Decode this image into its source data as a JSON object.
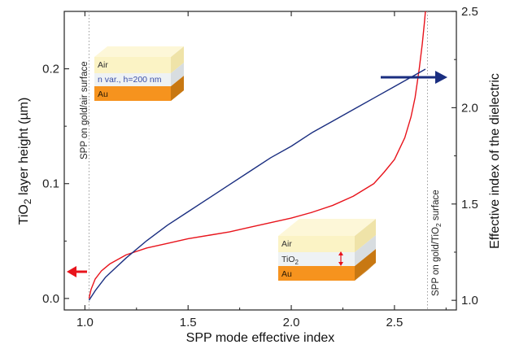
{
  "chart_data": {
    "type": "line",
    "xlabel": "SPP mode effective index",
    "ylabel_left": {
      "main": "TiO",
      "sub": "2",
      "rest": " layer height (µm)"
    },
    "ylabel_right": "Effective index of the dielectric",
    "xlim": [
      0.9,
      2.8
    ],
    "ylim_left": [
      -0.01,
      0.25
    ],
    "ylim_right": [
      0.95,
      2.5
    ],
    "xticks": [
      1.0,
      1.5,
      2.0,
      2.5
    ],
    "xtick_labels": [
      "1.0",
      "1.5",
      "2.0",
      "2.5"
    ],
    "yticks_left": [
      0.0,
      0.1,
      0.2
    ],
    "ytick_labels_left": [
      "0.0",
      "0.1",
      "0.2"
    ],
    "yticks_right": [
      1.0,
      1.5,
      2.0,
      2.5
    ],
    "ytick_labels_right": [
      "1.0",
      "1.5",
      "2.0",
      "2.5"
    ],
    "series": [
      {
        "axis": "left",
        "color": "#e8141c",
        "x": [
          1.02,
          1.03,
          1.05,
          1.08,
          1.12,
          1.16,
          1.2,
          1.3,
          1.4,
          1.5,
          1.6,
          1.7,
          1.8,
          1.9,
          2.0,
          2.1,
          2.2,
          2.3,
          2.4,
          2.45,
          2.5,
          2.55,
          2.58,
          2.6,
          2.62,
          2.635,
          2.645,
          2.655,
          2.665
        ],
        "y": [
          0.0,
          0.008,
          0.017,
          0.024,
          0.03,
          0.034,
          0.038,
          0.044,
          0.048,
          0.052,
          0.055,
          0.058,
          0.062,
          0.066,
          0.07,
          0.075,
          0.081,
          0.089,
          0.1,
          0.11,
          0.121,
          0.14,
          0.158,
          0.175,
          0.2,
          0.222,
          0.24,
          0.26,
          0.28
        ]
      },
      {
        "axis": "right",
        "color": "#1a2e80",
        "x": [
          1.02,
          1.05,
          1.1,
          1.15,
          1.2,
          1.3,
          1.4,
          1.5,
          1.6,
          1.7,
          1.8,
          1.9,
          2.0,
          2.1,
          2.2,
          2.3,
          2.4,
          2.5,
          2.6,
          2.65
        ],
        "y": [
          1.0,
          1.05,
          1.12,
          1.17,
          1.22,
          1.31,
          1.39,
          1.46,
          1.53,
          1.6,
          1.67,
          1.74,
          1.8,
          1.87,
          1.93,
          1.99,
          2.05,
          2.11,
          2.17,
          2.2
        ]
      }
    ],
    "vlines": [
      {
        "x": 1.02,
        "label": "SPP on gold/air surface"
      },
      {
        "x": 2.66,
        "label": "SPP on gold/TiO₂ surface"
      }
    ],
    "arrows": [
      {
        "direction": "left",
        "color": "#e8141c",
        "meaning": "left axis"
      },
      {
        "direction": "right",
        "color": "#1a2e80",
        "meaning": "right axis"
      }
    ],
    "insets": [
      {
        "layers": [
          "Air",
          "n var., h=200 nm",
          "Au"
        ],
        "colors": [
          "#fbf3c5",
          "#eef2f4",
          "#f6931e"
        ]
      },
      {
        "layers": [
          "Air",
          "TiO₂",
          "Au"
        ],
        "colors": [
          "#fbf3c5",
          "#eef2f4",
          "#f6931e"
        ]
      }
    ],
    "grid": false
  },
  "text": {
    "inset1_air": "Air",
    "inset1_mid": "n var., h=200 nm",
    "inset1_au": "Au",
    "inset2_air": "Air",
    "inset2_mid_main": "TiO",
    "inset2_mid_sub": "2",
    "inset2_au": "Au",
    "vline1_label": "SPP on gold/air surface",
    "vline2_label_main": "SPP on gold/TiO",
    "vline2_label_sub": "2",
    "vline2_label_rest": " surface"
  }
}
